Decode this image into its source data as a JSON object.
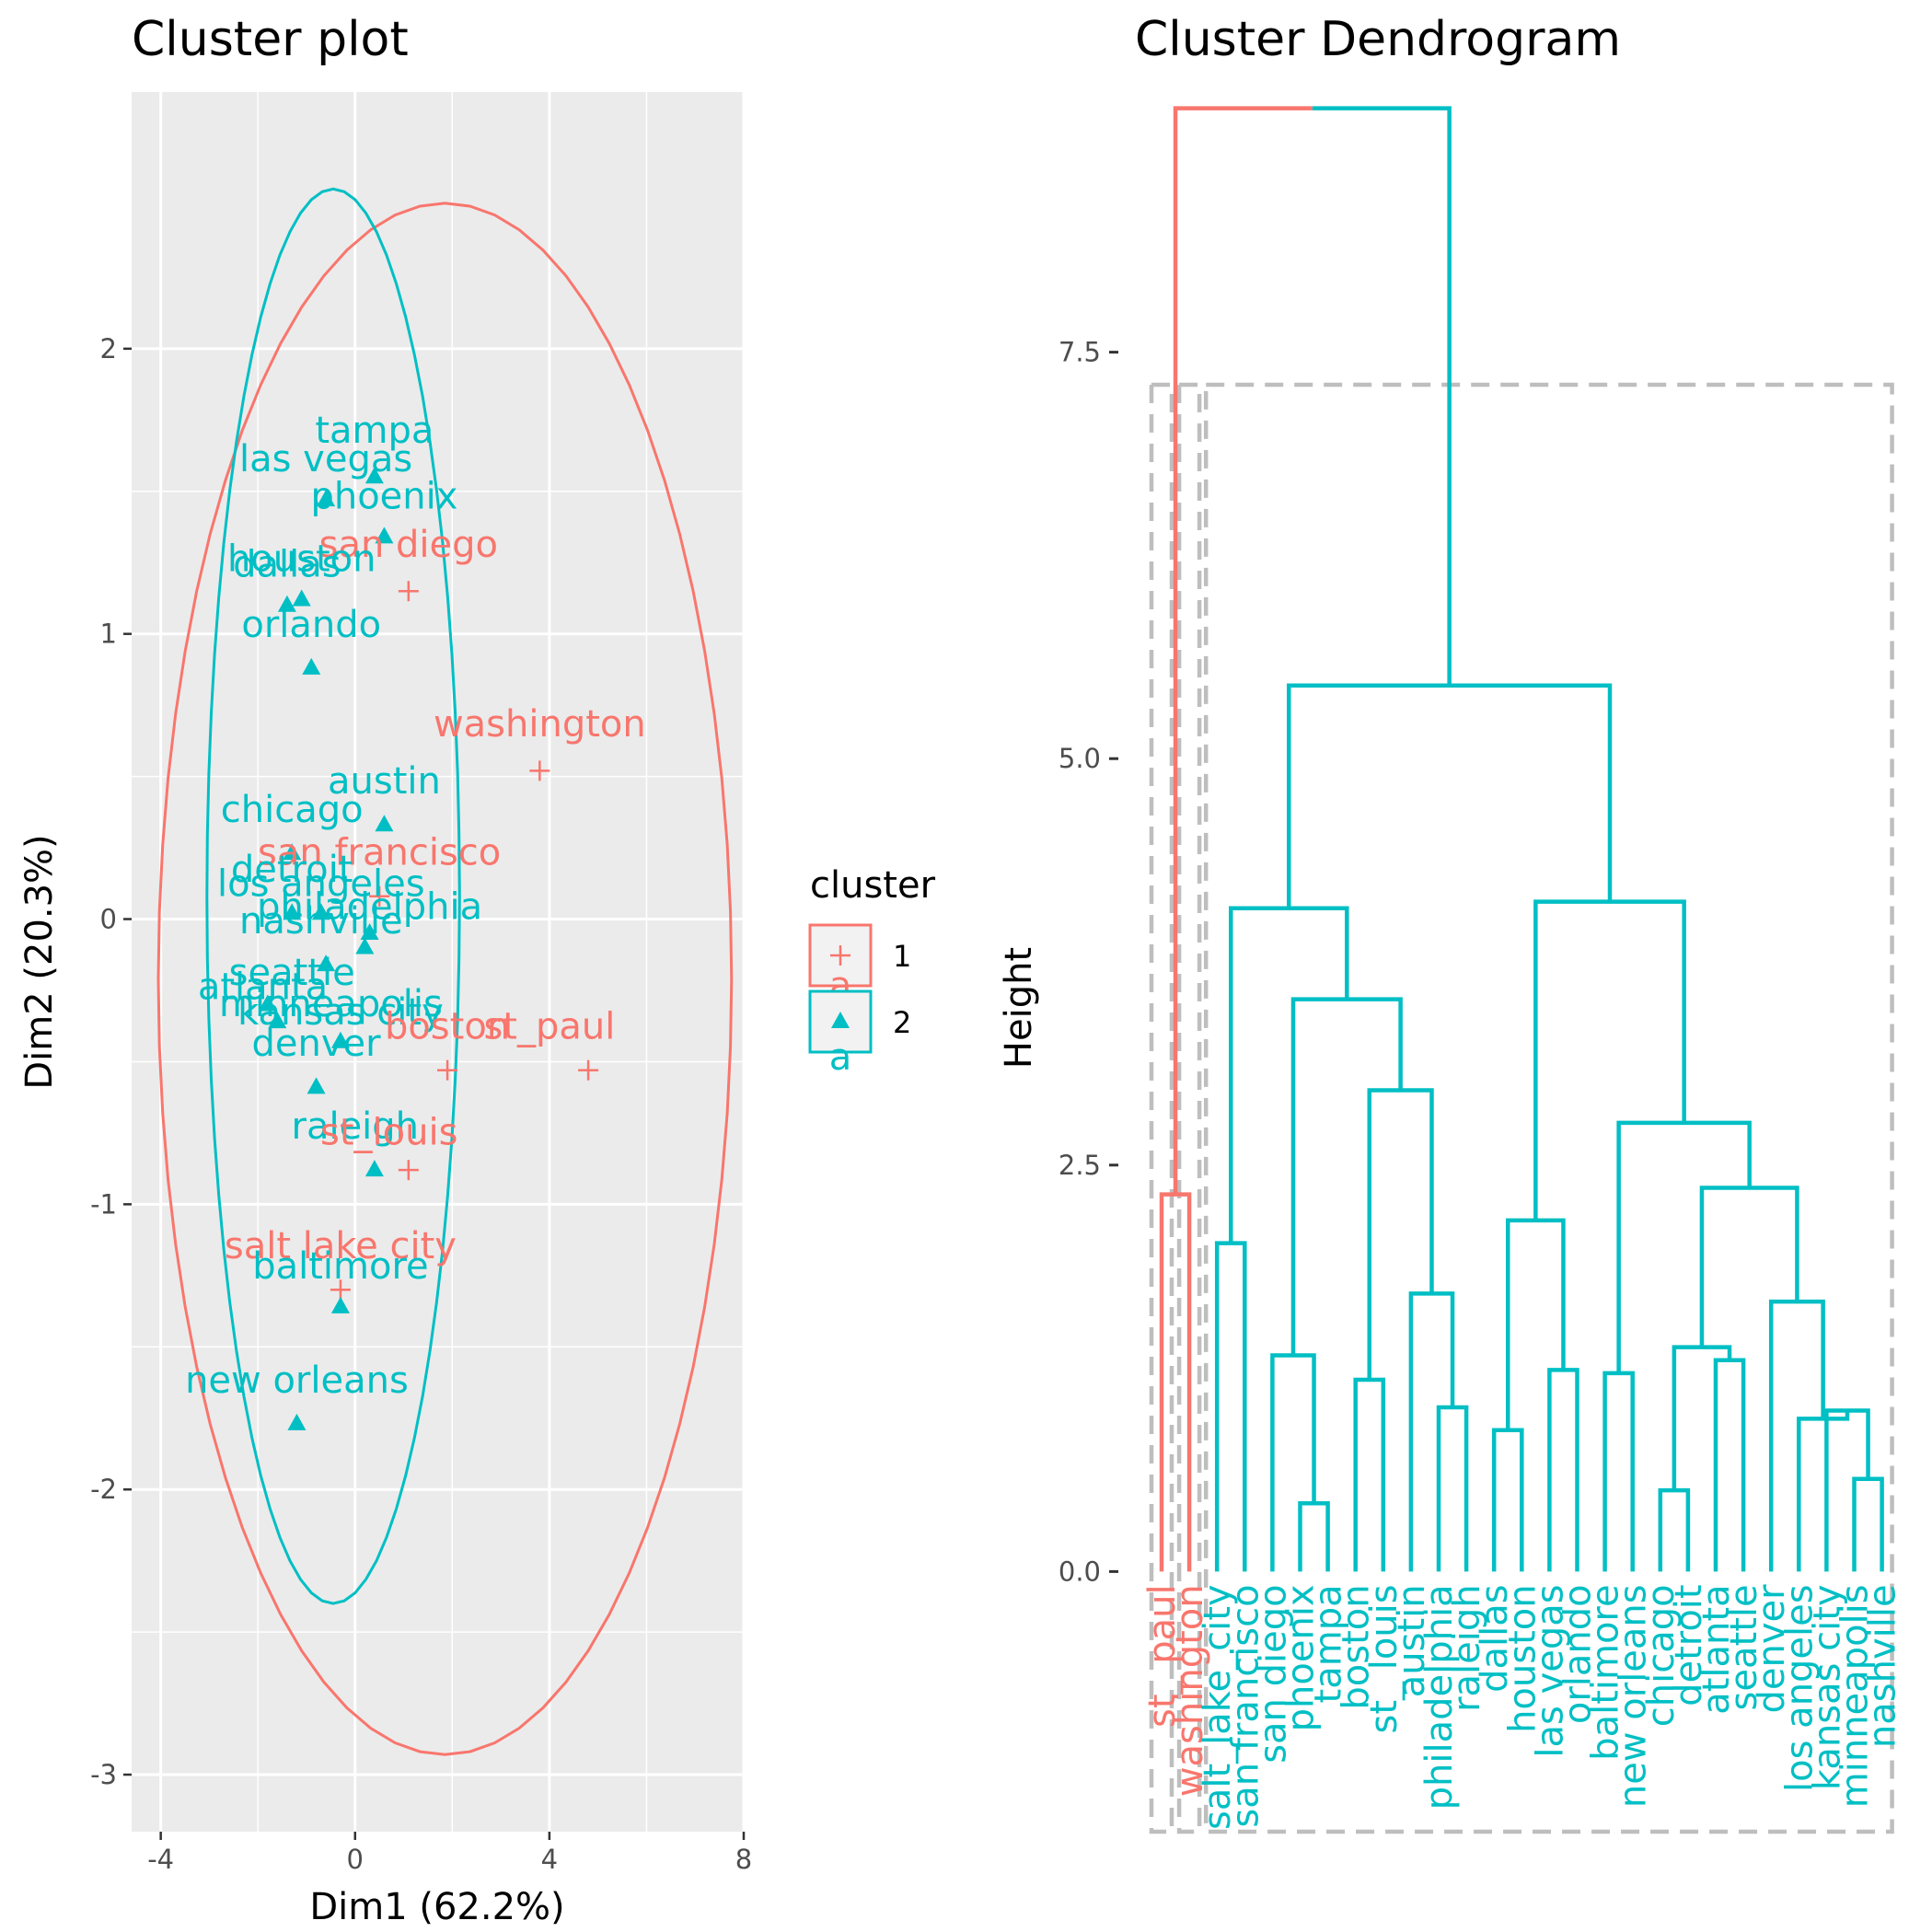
{
  "colors": {
    "cluster1": "#F8766D",
    "cluster2": "#00BFC4",
    "panel": "#EBEBEB",
    "grid": "#FFFFFF",
    "box": "#BEBEBE"
  },
  "chart_data": [
    {
      "type": "scatter",
      "title": "Cluster plot",
      "xlabel": "Dim1 (62.2%)",
      "ylabel": "Dim2 (20.3%)",
      "xlim": [
        -4.6,
        8.0
      ],
      "ylim": [
        -3.2,
        2.9
      ],
      "xticks": [
        -4,
        0,
        4,
        8
      ],
      "xtick_labels": [
        "-4",
        "0",
        "4",
        "8"
      ],
      "yticks": [
        -3,
        -2,
        -1,
        0,
        1,
        2
      ],
      "ytick_labels": [
        "-3",
        "-2",
        "-1",
        "0",
        "1",
        "2"
      ],
      "grid": true,
      "legend": {
        "title": "cluster",
        "position": "right",
        "entries": [
          {
            "label": "1",
            "cluster": 1,
            "marker": "plus",
            "letter": "a"
          },
          {
            "label": "2",
            "cluster": 2,
            "marker": "triangle",
            "letter": "a"
          }
        ]
      },
      "points": [
        {
          "name": "tampa",
          "cluster": 2,
          "x": 0.4,
          "y": 1.55,
          "lx": 0.4,
          "ly": 1.67
        },
        {
          "name": "las vegas",
          "cluster": 2,
          "x": -0.6,
          "y": 1.47,
          "lx": -0.6,
          "ly": 1.57
        },
        {
          "name": "phoenix",
          "cluster": 2,
          "x": 0.6,
          "y": 1.34,
          "lx": 0.6,
          "ly": 1.44
        },
        {
          "name": "san diego",
          "cluster": 1,
          "x": 1.1,
          "y": 1.15,
          "lx": 1.1,
          "ly": 1.27
        },
        {
          "name": "houston",
          "cluster": 2,
          "x": -1.1,
          "y": 1.12,
          "lx": -1.1,
          "ly": 1.22
        },
        {
          "name": "dallas",
          "cluster": 2,
          "x": -1.4,
          "y": 1.1,
          "lx": -1.4,
          "ly": 1.2
        },
        {
          "name": "orlando",
          "cluster": 2,
          "x": -0.9,
          "y": 0.88,
          "lx": -0.9,
          "ly": 0.99
        },
        {
          "name": "washington",
          "cluster": 1,
          "x": 3.8,
          "y": 0.52,
          "lx": 3.8,
          "ly": 0.64
        },
        {
          "name": "austin",
          "cluster": 2,
          "x": 0.6,
          "y": 0.33,
          "lx": 0.6,
          "ly": 0.44
        },
        {
          "name": "chicago",
          "cluster": 2,
          "x": -1.3,
          "y": 0.23,
          "lx": -1.3,
          "ly": 0.34
        },
        {
          "name": "san francisco",
          "cluster": 1,
          "x": 0.5,
          "y": 0.08,
          "lx": 0.5,
          "ly": 0.19
        },
        {
          "name": "detroit",
          "cluster": 2,
          "x": -1.3,
          "y": 0.02,
          "lx": -1.3,
          "ly": 0.13
        },
        {
          "name": "los angeles",
          "cluster": 2,
          "x": -0.7,
          "y": 0.02,
          "lx": -0.7,
          "ly": 0.08
        },
        {
          "name": "philadelphia",
          "cluster": 2,
          "x": 0.3,
          "y": -0.05,
          "lx": 0.3,
          "ly": 0.0
        },
        {
          "name": "nashville",
          "cluster": 2,
          "x": 0.2,
          "y": -0.1,
          "lx": -0.7,
          "ly": -0.05
        },
        {
          "name": "seattle",
          "cluster": 2,
          "x": -0.6,
          "y": -0.16,
          "lx": -1.3,
          "ly": -0.23
        },
        {
          "name": "atlanta",
          "cluster": 2,
          "x": -1.8,
          "y": -0.3,
          "lx": -1.9,
          "ly": -0.28
        },
        {
          "name": "minneapolis",
          "cluster": 2,
          "x": -1.6,
          "y": -0.36,
          "lx": -0.5,
          "ly": -0.34
        },
        {
          "name": "kansas city",
          "cluster": 2,
          "x": -0.3,
          "y": -0.43,
          "lx": -0.3,
          "ly": -0.37
        },
        {
          "name": "boston",
          "cluster": 1,
          "x": 1.9,
          "y": -0.53,
          "lx": 1.9,
          "ly": -0.42
        },
        {
          "name": "st_paul",
          "cluster": 1,
          "x": 4.8,
          "y": -0.53,
          "lx": 4.0,
          "ly": -0.42
        },
        {
          "name": "denver",
          "cluster": 2,
          "x": -0.8,
          "y": -0.59,
          "lx": -0.8,
          "ly": -0.48
        },
        {
          "name": "raleigh",
          "cluster": 2,
          "x": 0.4,
          "y": -0.88,
          "lx": 0.0,
          "ly": -0.77
        },
        {
          "name": "st_louis",
          "cluster": 1,
          "x": 1.1,
          "y": -0.88,
          "lx": 0.7,
          "ly": -0.79
        },
        {
          "name": "salt lake city",
          "cluster": 1,
          "x": -0.3,
          "y": -1.3,
          "lx": -0.3,
          "ly": -1.19
        },
        {
          "name": "baltimore",
          "cluster": 2,
          "x": -0.3,
          "y": -1.36,
          "lx": -0.3,
          "ly": -1.26
        },
        {
          "name": "new orleans",
          "cluster": 2,
          "x": -1.2,
          "y": -1.77,
          "lx": -1.2,
          "ly": -1.66
        }
      ],
      "ellipses": [
        {
          "cluster": 1,
          "cx": 1.85,
          "cy": -0.21,
          "rx": 5.9,
          "ry": 2.72
        },
        {
          "cluster": 2,
          "cx": -0.45,
          "cy": 0.08,
          "rx": 2.6,
          "ry": 2.48
        }
      ]
    },
    {
      "type": "dendrogram",
      "title": "Cluster Dendrogram",
      "ylabel": "Height",
      "ylim": [
        -1.6,
        9.1
      ],
      "yticks": [
        0,
        2.5,
        5,
        7.5
      ],
      "ytick_labels": [
        "0.0",
        "2.5",
        "5.0",
        "7.5"
      ],
      "leaves": [
        {
          "name": "st_ paul",
          "cluster": 1
        },
        {
          "name": "washington",
          "cluster": 1
        },
        {
          "name": "salt_lake_city",
          "cluster": 2
        },
        {
          "name": "san francisco",
          "cluster": 2
        },
        {
          "name": "san diego",
          "cluster": 2
        },
        {
          "name": "phoenix",
          "cluster": 2
        },
        {
          "name": "tampa",
          "cluster": 2
        },
        {
          "name": "boston",
          "cluster": 2
        },
        {
          "name": "st_ louis",
          "cluster": 2
        },
        {
          "name": "austin",
          "cluster": 2
        },
        {
          "name": "philadelphia",
          "cluster": 2
        },
        {
          "name": "raleigh",
          "cluster": 2
        },
        {
          "name": "dallas",
          "cluster": 2
        },
        {
          "name": "houston",
          "cluster": 2
        },
        {
          "name": "las vegas",
          "cluster": 2
        },
        {
          "name": "orlando",
          "cluster": 2
        },
        {
          "name": "baltimore",
          "cluster": 2
        },
        {
          "name": "new orleans",
          "cluster": 2
        },
        {
          "name": "chicago",
          "cluster": 2
        },
        {
          "name": "detroit",
          "cluster": 2
        },
        {
          "name": "atlanta",
          "cluster": 2
        },
        {
          "name": "seattle",
          "cluster": 2
        },
        {
          "name": "denver",
          "cluster": 2
        },
        {
          "name": "los angeles",
          "cluster": 2
        },
        {
          "name": "kansas city",
          "cluster": 2
        },
        {
          "name": "minneapolis",
          "cluster": 2
        },
        {
          "name": "nashville",
          "cluster": 2
        }
      ],
      "merges": [
        {
          "id": "m1",
          "children": [
            "L0",
            "L1"
          ],
          "height": 2.32,
          "cluster": 1
        },
        {
          "id": "m2",
          "children": [
            "L5",
            "L6"
          ],
          "height": 0.42,
          "cluster": 2
        },
        {
          "id": "m3",
          "children": [
            "L4",
            "m2"
          ],
          "height": 1.33,
          "cluster": 2
        },
        {
          "id": "m4",
          "children": [
            "L7",
            "L8"
          ],
          "height": 1.18,
          "cluster": 2
        },
        {
          "id": "m5",
          "children": [
            "L10",
            "L11"
          ],
          "height": 1.01,
          "cluster": 2
        },
        {
          "id": "m6",
          "children": [
            "L9",
            "m5"
          ],
          "height": 1.71,
          "cluster": 2
        },
        {
          "id": "m7",
          "children": [
            "m4",
            "m6"
          ],
          "height": 2.96,
          "cluster": 2
        },
        {
          "id": "m8",
          "children": [
            "m3",
            "m7"
          ],
          "height": 3.52,
          "cluster": 2
        },
        {
          "id": "m9",
          "children": [
            "L2",
            "L3"
          ],
          "height": 2.02,
          "cluster": 2
        },
        {
          "id": "m10",
          "children": [
            "m9",
            "m8"
          ],
          "height": 4.08,
          "cluster": 2
        },
        {
          "id": "m11",
          "children": [
            "L12",
            "L13"
          ],
          "height": 0.87,
          "cluster": 2
        },
        {
          "id": "m12",
          "children": [
            "L14",
            "L15"
          ],
          "height": 1.24,
          "cluster": 2
        },
        {
          "id": "m13",
          "children": [
            "m11",
            "m12"
          ],
          "height": 2.16,
          "cluster": 2
        },
        {
          "id": "m14",
          "children": [
            "L18",
            "L19"
          ],
          "height": 0.5,
          "cluster": 2
        },
        {
          "id": "m15",
          "children": [
            "L20",
            "L21"
          ],
          "height": 1.3,
          "cluster": 2
        },
        {
          "id": "m16",
          "children": [
            "m14",
            "m15"
          ],
          "height": 1.38,
          "cluster": 2
        },
        {
          "id": "m17",
          "children": [
            "L25",
            "L26"
          ],
          "height": 0.57,
          "cluster": 2
        },
        {
          "id": "m18",
          "children": [
            "L24",
            "m17"
          ],
          "height": 0.99,
          "cluster": 2
        },
        {
          "id": "m19",
          "children": [
            "L23",
            "m18"
          ],
          "height": 0.94,
          "cluster": 2
        },
        {
          "id": "m20",
          "children": [
            "L22",
            "m19"
          ],
          "height": 1.66,
          "cluster": 2
        },
        {
          "id": "m21",
          "children": [
            "m16",
            "m20"
          ],
          "height": 2.36,
          "cluster": 2
        },
        {
          "id": "m22",
          "children": [
            "L16",
            "L17"
          ],
          "height": 1.22,
          "cluster": 2
        },
        {
          "id": "m23",
          "children": [
            "m22",
            "m21"
          ],
          "height": 2.76,
          "cluster": 2
        },
        {
          "id": "m24",
          "children": [
            "m13",
            "m23"
          ],
          "height": 4.12,
          "cluster": 2
        },
        {
          "id": "m25",
          "children": [
            "m10",
            "m24"
          ],
          "height": 5.45,
          "cluster": 2
        },
        {
          "id": "m26",
          "children": [
            "m1",
            "m25"
          ],
          "height": 9.0,
          "cluster": "mixed"
        }
      ],
      "rect_boxes": [
        {
          "from_leaf": 0,
          "to_leaf": 0,
          "height": 7.3
        },
        {
          "from_leaf": 1,
          "to_leaf": 1,
          "height": 7.3
        },
        {
          "from_leaf": 2,
          "to_leaf": 26,
          "height": 7.3
        }
      ]
    }
  ]
}
